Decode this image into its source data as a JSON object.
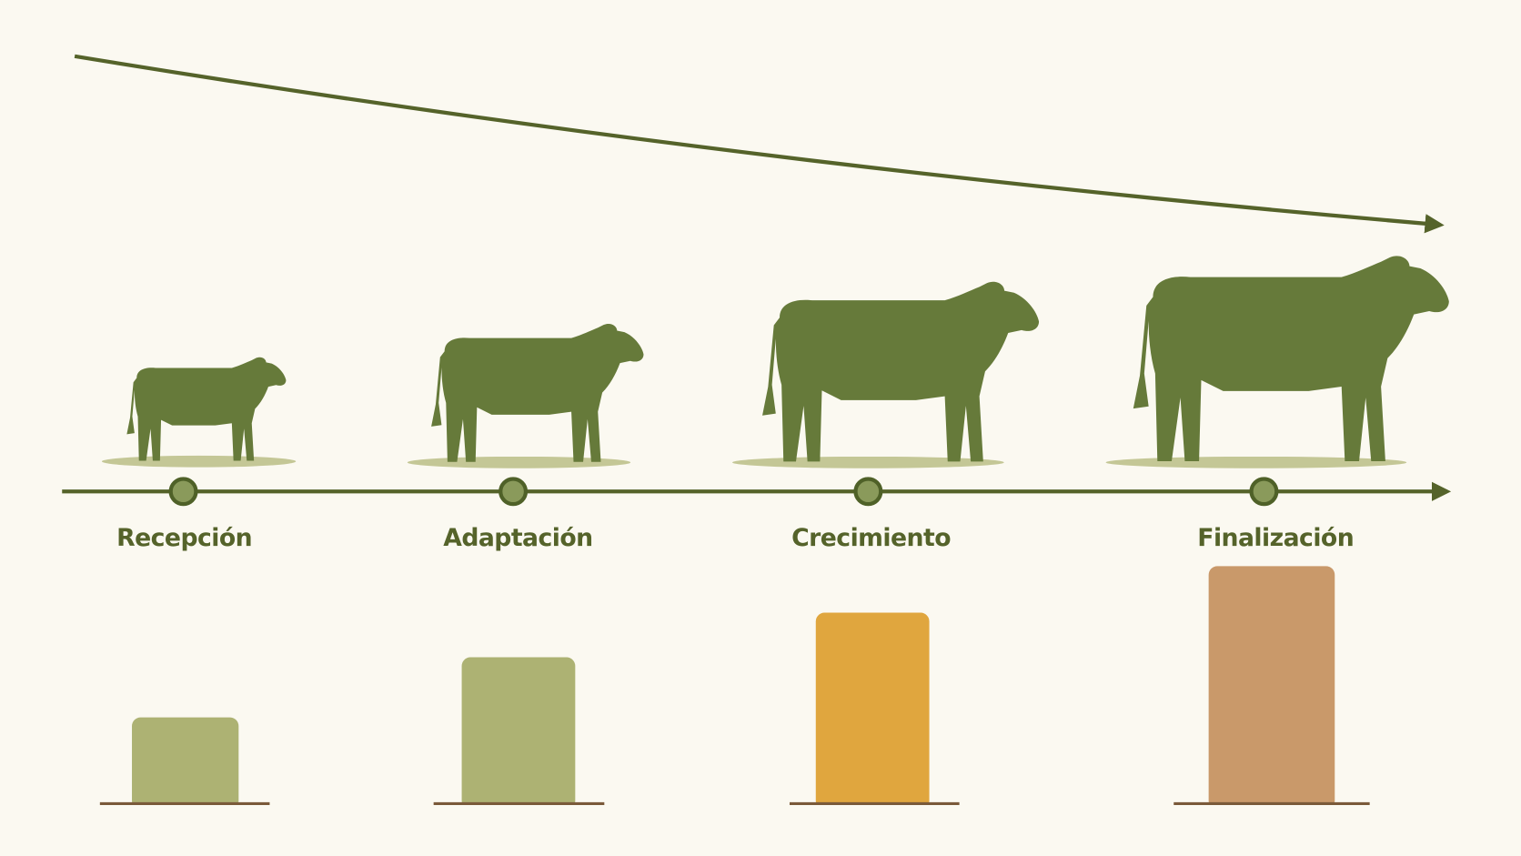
{
  "stages": [
    {
      "label": "Recepción"
    },
    {
      "label": "Adaptación"
    },
    {
      "label": "Crecimiento"
    },
    {
      "label": "Finalización"
    }
  ]
}
